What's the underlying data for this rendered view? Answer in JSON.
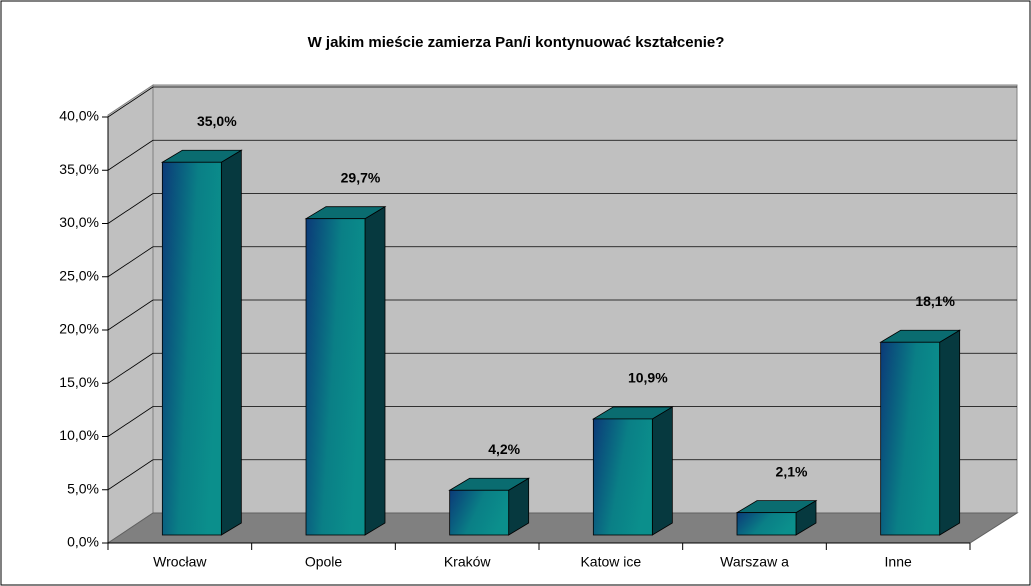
{
  "chart_data": {
    "type": "bar3d",
    "title": "W jakim mieście zamierza Pan/i kontynuować kształcenie?",
    "categories": [
      "Wrocław",
      "Opole",
      "Kraków",
      "Katow ice",
      "Warszaw a",
      "Inne"
    ],
    "values": [
      35.0,
      29.7,
      4.2,
      10.9,
      2.1,
      18.1
    ],
    "value_labels": [
      "35,0%",
      "29,7%",
      "4,2%",
      "10,9%",
      "2,1%",
      "18,1%"
    ],
    "color": "#0a8585",
    "ylim": [
      0,
      40
    ],
    "yticks": [
      {
        "value": 0,
        "label": "0,0%"
      },
      {
        "value": 5,
        "label": "5,0%"
      },
      {
        "value": 10,
        "label": "10,0%"
      },
      {
        "value": 15,
        "label": "15,0%"
      },
      {
        "value": 20,
        "label": "20,0%"
      },
      {
        "value": 25,
        "label": "25,0%"
      },
      {
        "value": 30,
        "label": "30,0%"
      },
      {
        "value": 35,
        "label": "35,0%"
      },
      {
        "value": 40,
        "label": "40,0%"
      }
    ],
    "grid": true
  }
}
